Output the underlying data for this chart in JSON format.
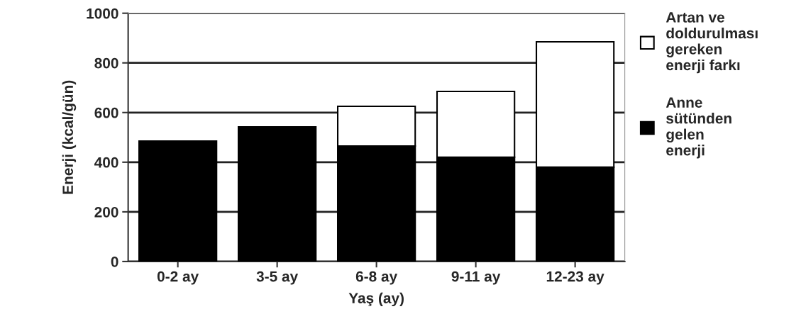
{
  "chart_data": {
    "type": "bar",
    "stacked": true,
    "xlabel": "Yaş (ay)",
    "ylabel": "Enerji (kcal/gün)",
    "categories": [
      "0-2 ay",
      "3-5 ay",
      "6-8 ay",
      "9-11 ay",
      "12-23 ay"
    ],
    "series": [
      {
        "name": "Anne\nsütünden\ngelen\nenerji",
        "color": "#000000",
        "values": [
          485,
          542,
          465,
          420,
          380
        ]
      },
      {
        "name": "Artan ve\ndoldurulması\ngereken\nenerji farkı",
        "color": "#ffffff",
        "values": [
          null,
          null,
          160,
          265,
          505
        ]
      }
    ],
    "ylim": [
      0,
      1000
    ],
    "yticks": [
      0,
      200,
      400,
      600,
      800,
      1000
    ],
    "grid": "y",
    "legend": "right"
  }
}
